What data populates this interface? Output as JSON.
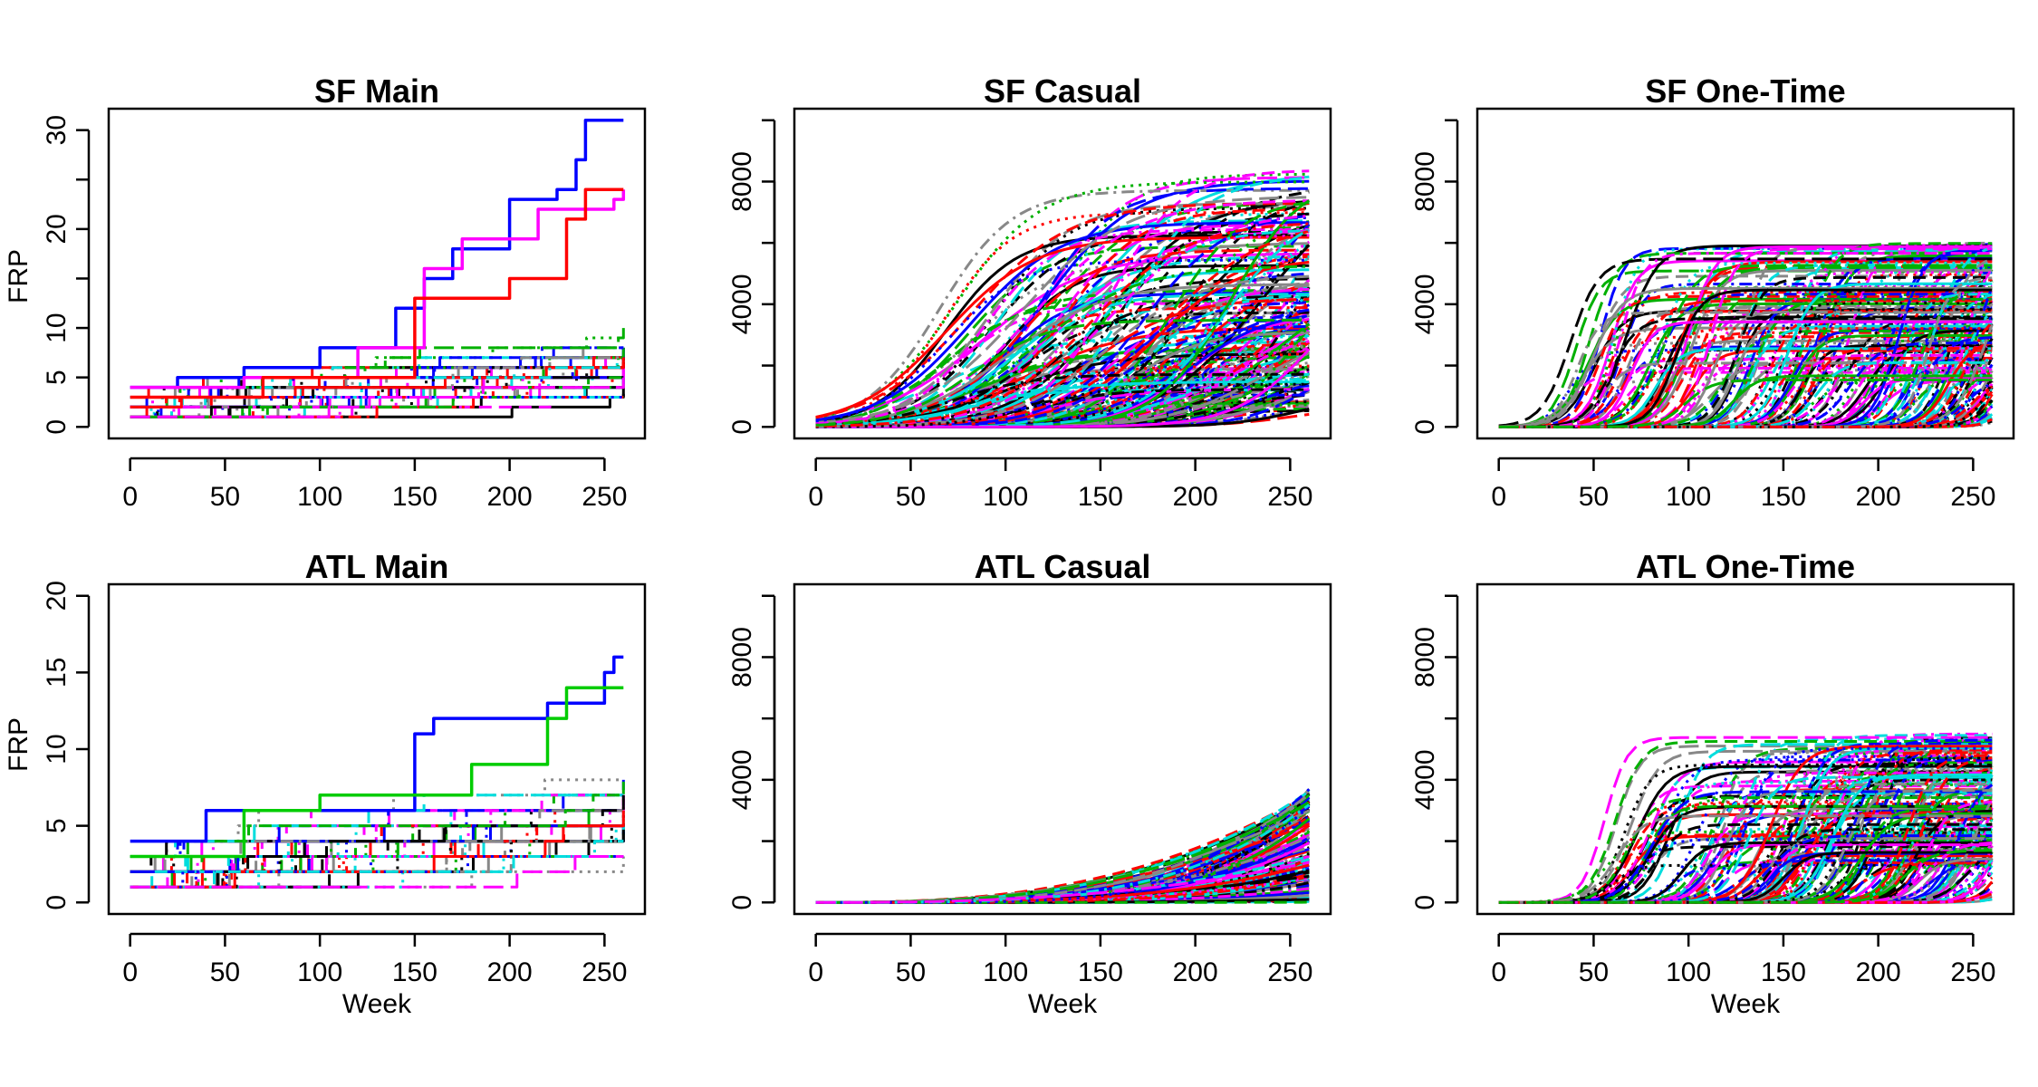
{
  "chart_data": [
    {
      "type": "line",
      "title": "SF Main",
      "xlabel": "",
      "ylabel": "FRP",
      "xlim": [
        0,
        260
      ],
      "ylim": [
        0,
        31
      ],
      "xticks": [
        "0",
        "50",
        "100",
        "150",
        "200",
        "250"
      ],
      "yticks": [
        "0",
        "5",
        "10",
        "20",
        "30"
      ],
      "curve_form": "step",
      "n_series": 90,
      "max_final_value": 31,
      "series_highlight": [
        {
          "color": "#0000ff",
          "values": [
            [
              0,
              4
            ],
            [
              25,
              5
            ],
            [
              60,
              6
            ],
            [
              100,
              8
            ],
            [
              140,
              12
            ],
            [
              155,
              15
            ],
            [
              170,
              18
            ],
            [
              200,
              23
            ],
            [
              215,
              23
            ],
            [
              225,
              24
            ],
            [
              235,
              27
            ],
            [
              240,
              31
            ],
            [
              260,
              31
            ]
          ]
        },
        {
          "color": "#ff00ff",
          "values": [
            [
              0,
              4
            ],
            [
              60,
              5
            ],
            [
              120,
              8
            ],
            [
              155,
              16
            ],
            [
              175,
              19
            ],
            [
              215,
              22
            ],
            [
              250,
              22
            ],
            [
              255,
              23
            ],
            [
              260,
              24
            ]
          ]
        },
        {
          "color": "#ff0000",
          "values": [
            [
              0,
              3
            ],
            [
              70,
              5
            ],
            [
              150,
              13
            ],
            [
              200,
              15
            ],
            [
              230,
              21
            ],
            [
              240,
              24
            ],
            [
              260,
              24
            ]
          ]
        }
      ]
    },
    {
      "type": "line",
      "title": "SF Casual",
      "xlabel": "",
      "ylabel": "",
      "xlim": [
        0,
        260
      ],
      "ylim": [
        0,
        10000
      ],
      "xticks": [
        "0",
        "50",
        "100",
        "150",
        "200",
        "250"
      ],
      "yticks": [
        "0",
        "4000",
        "8000"
      ],
      "curve_form": "sigmoid",
      "n_series": 220,
      "max_final_value": 8400,
      "onset_week_range": [
        40,
        240
      ],
      "final_value_range": [
        500,
        8400
      ]
    },
    {
      "type": "line",
      "title": "SF One-Time",
      "xlabel": "",
      "ylabel": "",
      "xlim": [
        0,
        260
      ],
      "ylim": [
        0,
        10000
      ],
      "xticks": [
        "0",
        "50",
        "100",
        "150",
        "200",
        "250"
      ],
      "yticks": [
        "0",
        "4000",
        "8000"
      ],
      "curve_form": "sigmoid",
      "n_series": 220,
      "max_final_value": 6000,
      "onset_week_range": [
        12,
        255
      ],
      "final_value_range": [
        1500,
        6000
      ]
    },
    {
      "type": "line",
      "title": "ATL Main",
      "xlabel": "Week",
      "ylabel": "FRP",
      "xlim": [
        0,
        260
      ],
      "ylim": [
        0,
        20
      ],
      "xticks": [
        "0",
        "50",
        "100",
        "150",
        "200",
        "250"
      ],
      "yticks": [
        "0",
        "5",
        "10",
        "15",
        "20"
      ],
      "curve_form": "step",
      "n_series": 90,
      "max_final_value": 16,
      "series_highlight": [
        {
          "color": "#0000ff",
          "values": [
            [
              0,
              4
            ],
            [
              40,
              6
            ],
            [
              150,
              11
            ],
            [
              160,
              12
            ],
            [
              220,
              13
            ],
            [
              250,
              15
            ],
            [
              255,
              16
            ],
            [
              260,
              16
            ]
          ]
        },
        {
          "color": "#00cc00",
          "values": [
            [
              0,
              3
            ],
            [
              60,
              6
            ],
            [
              100,
              7
            ],
            [
              180,
              9
            ],
            [
              220,
              12
            ],
            [
              230,
              14
            ],
            [
              260,
              14
            ]
          ]
        }
      ]
    },
    {
      "type": "line",
      "title": "ATL Casual",
      "xlabel": "Week",
      "ylabel": "",
      "xlim": [
        0,
        260
      ],
      "ylim": [
        0,
        10000
      ],
      "xticks": [
        "0",
        "50",
        "100",
        "150",
        "200",
        "250"
      ],
      "yticks": [
        "0",
        "4000",
        "8000"
      ],
      "curve_form": "convex",
      "n_series": 160,
      "max_final_value": 3700,
      "final_value_range": [
        0,
        3700
      ]
    },
    {
      "type": "line",
      "title": "ATL One-Time",
      "xlabel": "Week",
      "ylabel": "",
      "xlim": [
        0,
        260
      ],
      "ylim": [
        0,
        10000
      ],
      "xticks": [
        "0",
        "50",
        "100",
        "150",
        "200",
        "250"
      ],
      "yticks": [
        "0",
        "4000",
        "8000"
      ],
      "curve_form": "sigmoid",
      "n_series": 220,
      "max_final_value": 5500,
      "onset_week_range": [
        30,
        255
      ],
      "final_value_range": [
        1200,
        5500
      ]
    }
  ],
  "palette": [
    "#000000",
    "#ff0000",
    "#00b000",
    "#0000ff",
    "#00dddd",
    "#ff00ff",
    "#888888"
  ],
  "line_styles": [
    "solid",
    "dashed",
    "dotted",
    "dotdash",
    "longdash"
  ]
}
